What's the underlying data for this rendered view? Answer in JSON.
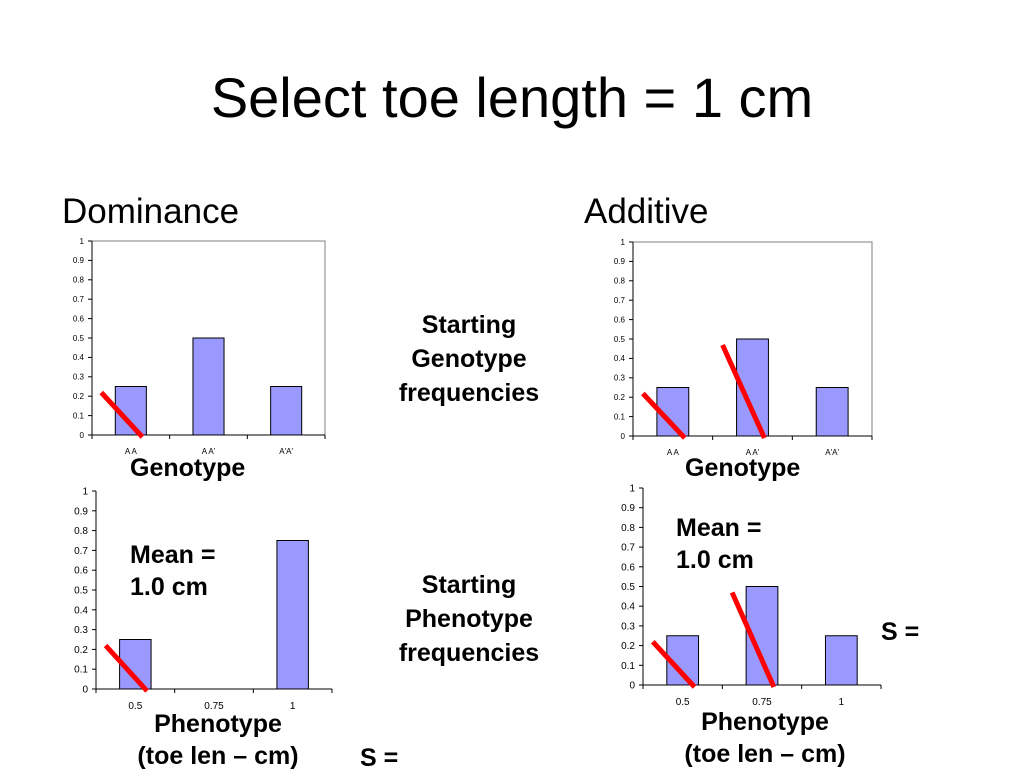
{
  "slide": {
    "title": "Select toe length = 1 cm",
    "left_heading": "Dominance",
    "right_heading": "Additive",
    "center_top": [
      "Starting",
      "Genotype",
      "frequencies"
    ],
    "center_bottom": [
      "Starting",
      "Phenotype",
      "frequencies"
    ],
    "left_s_label": "S =",
    "right_s_label": "S ="
  },
  "colors": {
    "bar_fill": "#9999ff",
    "bar_stroke": "#000000",
    "cross_out": "#ff0000"
  },
  "chart_data": [
    {
      "id": "dominance-genotype",
      "type": "bar",
      "categories": [
        "A A",
        "A A'",
        "A'A'"
      ],
      "values": [
        0.25,
        0.5,
        0.25
      ],
      "ylim": [
        0,
        1
      ],
      "yticks": [
        "0",
        "0.1",
        "0.2",
        "0.3",
        "0.4",
        "0.5",
        "0.6",
        "0.7",
        "0.8",
        "0.9",
        "1"
      ],
      "xlabel": "Genotype",
      "crossed_out": [
        0
      ],
      "annotation": ""
    },
    {
      "id": "additive-genotype",
      "type": "bar",
      "categories": [
        "A A",
        "A A'",
        "A'A'"
      ],
      "values": [
        0.25,
        0.5,
        0.25
      ],
      "ylim": [
        0,
        1
      ],
      "yticks": [
        "0",
        "0.1",
        "0.2",
        "0.3",
        "0.4",
        "0.5",
        "0.6",
        "0.7",
        "0.8",
        "0.9",
        "1"
      ],
      "xlabel": "Genotype",
      "crossed_out": [
        0,
        1
      ],
      "annotation": ""
    },
    {
      "id": "dominance-phenotype",
      "type": "bar",
      "categories": [
        "0.5",
        "0.75",
        "1"
      ],
      "values": [
        0.25,
        0,
        0.75
      ],
      "ylim": [
        0,
        1
      ],
      "yticks": [
        "0",
        "0.1",
        "0.2",
        "0.3",
        "0.4",
        "0.5",
        "0.6",
        "0.7",
        "0.8",
        "0.9",
        "1"
      ],
      "xlabel": "Phenotype",
      "xlabel2": "(toe len – cm)",
      "crossed_out": [
        0
      ],
      "annotation": [
        "Mean =",
        "1.0 cm"
      ]
    },
    {
      "id": "additive-phenotype",
      "type": "bar",
      "categories": [
        "0.5",
        "0.75",
        "1"
      ],
      "values": [
        0.25,
        0.5,
        0.25
      ],
      "ylim": [
        0,
        1
      ],
      "yticks": [
        "0",
        "0.1",
        "0.2",
        "0.3",
        "0.4",
        "0.5",
        "0.6",
        "0.7",
        "0.8",
        "0.9",
        "1"
      ],
      "xlabel": "Phenotype",
      "xlabel2": "(toe len – cm)",
      "crossed_out": [
        0,
        1
      ],
      "annotation": [
        "Mean =",
        "1.0 cm"
      ]
    }
  ]
}
